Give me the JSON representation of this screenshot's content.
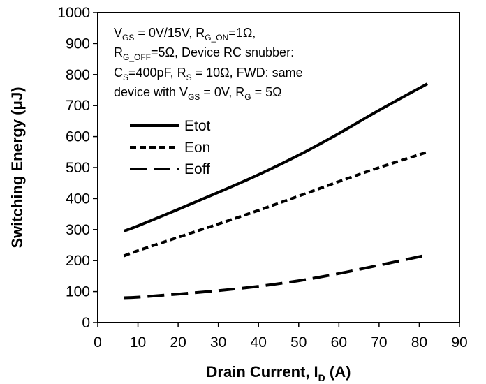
{
  "chart_data": {
    "type": "line",
    "title": "",
    "xlabel": "Drain Current, I",
    "xlabel_sub": "D",
    "xlabel_unit": " (A)",
    "ylabel": "Switching Energy (μJ)",
    "xlim": [
      0,
      90
    ],
    "ylim": [
      0,
      1000
    ],
    "xticks": [
      0,
      10,
      20,
      30,
      40,
      50,
      60,
      70,
      80,
      90
    ],
    "yticks": [
      0,
      100,
      200,
      300,
      400,
      500,
      600,
      700,
      800,
      900,
      1000
    ],
    "grid": false,
    "legend_position": "left",
    "series": [
      {
        "name": "Etot",
        "dash": "solid",
        "color": "#000000",
        "x": [
          6.5,
          10,
          20,
          30,
          40,
          50,
          60,
          70,
          82
        ],
        "y": [
          295,
          312,
          365,
          420,
          477,
          540,
          610,
          685,
          770
        ]
      },
      {
        "name": "Eon",
        "dash": "dotted",
        "color": "#000000",
        "x": [
          6.5,
          10,
          20,
          30,
          40,
          50,
          60,
          70,
          82
        ],
        "y": [
          215,
          232,
          275,
          318,
          362,
          408,
          455,
          500,
          550
        ]
      },
      {
        "name": "Eoff",
        "dash": "long-dash",
        "color": "#000000",
        "x": [
          6.5,
          10,
          20,
          30,
          40,
          50,
          60,
          70,
          82
        ],
        "y": [
          80,
          82,
          92,
          103,
          117,
          135,
          158,
          185,
          218
        ]
      }
    ],
    "annotation": {
      "line1": [
        "V",
        "GS",
        " = 0V/15V, R",
        "G_ON",
        "=1Ω,"
      ],
      "line2": [
        "R",
        "G_OFF",
        "=5Ω, Device RC snubber:"
      ],
      "line3": [
        "C",
        "S",
        "=400pF,  R",
        "S",
        " = 10Ω, FWD: same"
      ],
      "line4": [
        "device with V",
        "GS",
        " = 0V, R",
        "G",
        " = 5Ω"
      ]
    }
  }
}
